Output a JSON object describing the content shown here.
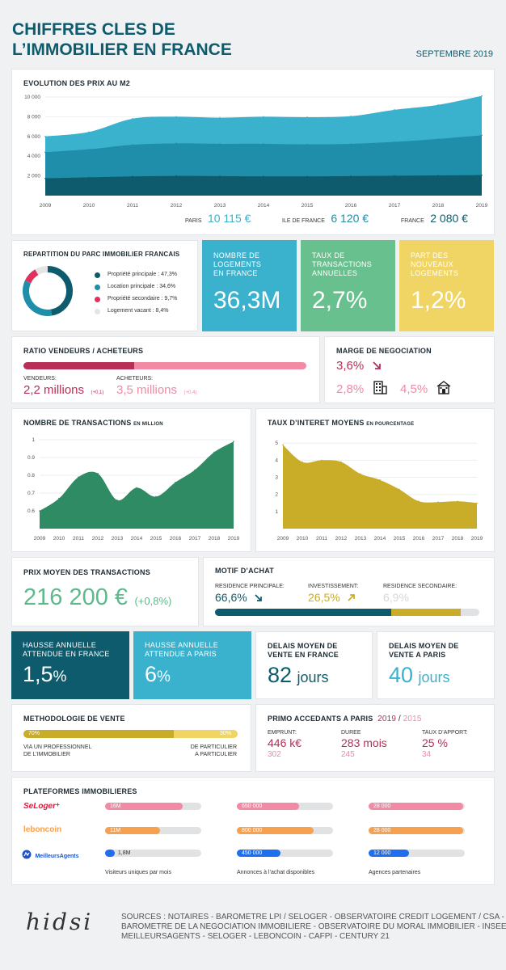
{
  "header": {
    "title_line1": "CHIFFRES CLES DE",
    "title_line2": "L’IMMOBILIER EN FRANCE",
    "date": "SEPTEMBRE 2019"
  },
  "colors": {
    "teal_dark": "#0d5b6c",
    "teal": "#1e8eaa",
    "blue": "#3ab1cd",
    "crimson": "#b72f57",
    "pink": "#f08aa5",
    "green": "#68c08e",
    "yellow": "#f0d564",
    "mustard": "#c9ac27",
    "orange": "#f5a14f"
  },
  "prix_m2": {
    "title": "EVOLUTION DES PRIX AU M2",
    "paris_label": "PARIS",
    "paris_value": "10 115 €",
    "idf_label": "ILE DE FRANCE",
    "idf_value": "6 120 €",
    "france_label": "FRANCE",
    "france_value": "2 080 €"
  },
  "parc": {
    "title": "REPARTITION DU PARC IMMOBILIER FRANCAIS",
    "items": [
      {
        "label": "Propriété principale : 47,3%",
        "value": 47.3,
        "color": "#0d5b6c"
      },
      {
        "label": "Location principale : 34,6%",
        "value": 34.6,
        "color": "#1e8eaa"
      },
      {
        "label": "Propriété secondaire : 9,7%",
        "value": 9.7,
        "color": "#e0305e"
      },
      {
        "label": "Logement vacant : 8,4%",
        "value": 8.4,
        "color": "#e4e4e4"
      }
    ]
  },
  "tiles_top": [
    {
      "label": "NOMBRE DE LOGEMENTS EN FRANCE",
      "value": "36,3M",
      "color": "#3ab1cd"
    },
    {
      "label": "TAUX DE TRANSACTIONS ANNUELLES",
      "value": "2,7%",
      "color": "#68c08e"
    },
    {
      "label": "PART DES NOUVEAUX LOGEMENTS",
      "value": "1,2%",
      "color": "#f0d564"
    }
  ],
  "ratio": {
    "title": "RATIO VENDEURS / ACHETEURS",
    "vendeurs_share": 0.39,
    "vendeurs_label": "VENDEURS:",
    "vendeurs_value": "2,2 millions",
    "vendeurs_delta": "(+0,1)",
    "acheteurs_label": "ACHETEURS:",
    "acheteurs_value": "3,5 millions",
    "acheteurs_delta": "(+0,4)"
  },
  "marge": {
    "title": "MARGE DE NEGOCIATION",
    "total": "3,6%",
    "appart": "2,8%",
    "maison": "4,5%"
  },
  "transactions": {
    "title": "NOMBRE DE TRANSACTIONS",
    "title_small": "EN MILLION"
  },
  "taux": {
    "title": "TAUX D’INTERET MOYENS",
    "title_small": "EN POURCENTAGE"
  },
  "prix_moyen": {
    "title": "PRIX MOYEN DES TRANSACTIONS",
    "value": "216 200 €",
    "delta": "(+0,8%)"
  },
  "motif": {
    "title": "MOTIF D’ACHAT",
    "rp_label": "RESIDENCE PRINCIPALE:",
    "rp_value": "66,6%",
    "inv_label": "INVESTISSEMENT:",
    "inv_value": "26,5%",
    "rs_label": "RESIDENCE SECONDAIRE:",
    "rs_value": "6,9%",
    "shares": [
      66.6,
      26.5,
      6.9
    ]
  },
  "tiles_mid": [
    {
      "label": "HAUSSE ANNUELLE ATTENDUE EN FRANCE",
      "value": "1,5",
      "unit": "%",
      "color": "#0d5b6c"
    },
    {
      "label": "HAUSSE ANNUELLE ATTENDUE A PARIS",
      "value": "6",
      "unit": "%",
      "color": "#3ab1cd"
    }
  ],
  "delais": [
    {
      "label": "DELAIS MOYEN DE VENTE EN FRANCE",
      "value": "82",
      "unit": "jours"
    },
    {
      "label": "DELAIS MOYEN DE VENTE A PARIS",
      "value": "40",
      "unit": "jours"
    }
  ],
  "methodo": {
    "title": "METHODOLOGIE DE VENTE",
    "pro_share": 0.7,
    "pro_pct": "70%",
    "part_pct": "30%",
    "pro_label_1": "VIA UN PROFESSIONNEL",
    "pro_label_2": "DE L’IMMOBILIER",
    "part_label_1": "DE PARTICULIER",
    "part_label_2": "A PARTICULIER"
  },
  "primo": {
    "title": "PRIMO ACCEDANTS A PARIS",
    "year_now": "2019",
    "sep": "/",
    "year_prev": "2015",
    "cols": [
      {
        "label": "EMPRUNT:",
        "now": "446 k€",
        "prev": "302"
      },
      {
        "label": "DUREE",
        "now": "283 mois",
        "prev": "245"
      },
      {
        "label": "TAUX D’APPORT:",
        "now": "25 %",
        "prev": "34"
      }
    ]
  },
  "plateformes": {
    "title": "PLATEFORMES IMMOBILIERES",
    "brands": [
      {
        "name": "SeLoger",
        "suffix": "+",
        "color": "#e3183c"
      },
      {
        "name": "leboncoin",
        "color": "#f5a14f"
      },
      {
        "name": "MeilleursAgents",
        "color": "#1e54c7"
      }
    ],
    "columns": [
      {
        "caption": "Visiteurs uniques par mois",
        "bars": [
          {
            "label": "16M",
            "fill": 0.81
          },
          {
            "label": "11M",
            "fill": 0.57
          },
          {
            "label": "1,8M",
            "fill": 0.1
          }
        ]
      },
      {
        "caption": "Annonces à l’achat disponibles",
        "bars": [
          {
            "label": "650 000",
            "fill": 0.65
          },
          {
            "label": "800 000",
            "fill": 0.8
          },
          {
            "label": "450 000",
            "fill": 0.45
          }
        ]
      },
      {
        "caption": "Agences partenaires",
        "bars": [
          {
            "label": "28 000",
            "fill": 0.98
          },
          {
            "label": "28 000",
            "fill": 0.98
          },
          {
            "label": "12 000",
            "fill": 0.42
          }
        ]
      }
    ]
  },
  "footer": {
    "logo": "hidsi",
    "line1": "SOURCES : NOTAIRES - BAROMETRE LPI / SELOGER - OBSERVATOIRE CREDIT LOGEMENT / CSA -",
    "line2": "BAROMETRE DE LA NEGOCIATION IMMOBILIERE - OBSERVATOIRE DU MORAL IMMOBILIER - INSEE -",
    "line3": "MEILLEURSAGENTS - SELOGER - LEBONCOIN - CAFPI - CENTURY 21"
  },
  "chart_data": [
    {
      "type": "area",
      "title": "EVOLUTION DES PRIX AU M2",
      "x": [
        "2009",
        "2010",
        "2011",
        "2012",
        "2013",
        "2014",
        "2015",
        "2016",
        "2017",
        "2018",
        "2019"
      ],
      "ylim": [
        0,
        10000
      ],
      "yticks": [
        "2 000",
        "4 000",
        "6 000",
        "8 000",
        "10 000"
      ],
      "ytick_values": [
        2000,
        4000,
        6000,
        8000,
        10000
      ],
      "series": [
        {
          "values": [
            6000,
            6450,
            7800,
            8000,
            7900,
            8000,
            7950,
            8050,
            8700,
            9200,
            10115
          ],
          "color": "#3ab1cd"
        },
        {
          "values": [
            4400,
            4700,
            5150,
            5300,
            5250,
            5250,
            5200,
            5250,
            5450,
            5750,
            6120
          ],
          "color": "#1e8eaa"
        },
        {
          "values": [
            1750,
            1850,
            1950,
            2000,
            1980,
            1950,
            1950,
            1980,
            2020,
            2050,
            2080
          ],
          "color": "#0d5b6c"
        }
      ]
    },
    {
      "type": "area",
      "title": "NOMBRE DE TRANSACTIONS",
      "x": [
        "2009",
        "2010",
        "2011",
        "2012",
        "2013",
        "2014",
        "2015",
        "2016",
        "2017",
        "2018",
        "2019"
      ],
      "ylim": [
        0.5,
        1.0
      ],
      "yticks": [
        "0.6",
        "0.7",
        "0.8",
        "0.9",
        "1"
      ],
      "ytick_values": [
        0.6,
        0.7,
        0.8,
        0.9,
        1.0
      ],
      "series": [
        {
          "values": [
            0.6,
            0.67,
            0.79,
            0.81,
            0.66,
            0.73,
            0.68,
            0.76,
            0.83,
            0.93,
            0.99
          ],
          "color": "#2f8b63"
        }
      ]
    },
    {
      "type": "area",
      "title": "TAUX D’INTERET MOYENS",
      "x": [
        "2009",
        "2010",
        "2011",
        "2012",
        "2013",
        "2014",
        "2015",
        "2016",
        "2017",
        "2018",
        "2019"
      ],
      "ylim": [
        0,
        5.2
      ],
      "yticks": [
        "1",
        "2",
        "3",
        "4",
        "5"
      ],
      "ytick_values": [
        1,
        2,
        3,
        4,
        5
      ],
      "series": [
        {
          "values": [
            4.9,
            3.9,
            4.0,
            3.9,
            3.2,
            2.85,
            2.3,
            1.6,
            1.55,
            1.6,
            1.5
          ],
          "color": "#c9ac27"
        }
      ]
    }
  ]
}
